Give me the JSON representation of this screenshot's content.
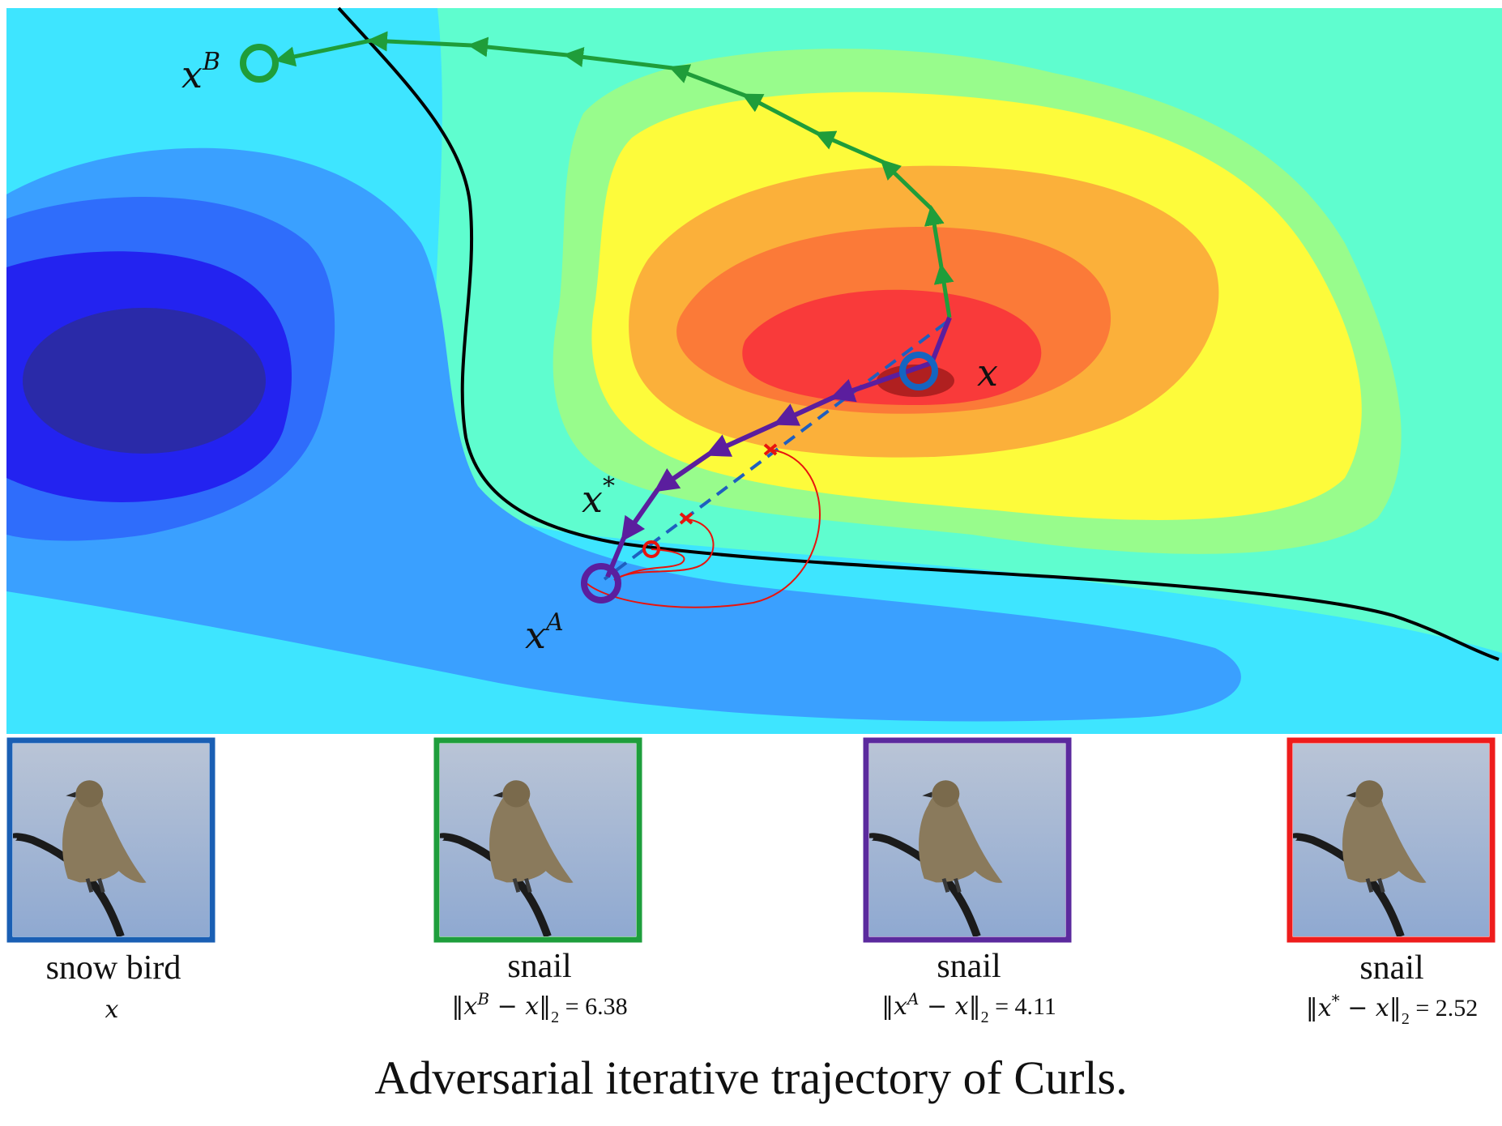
{
  "caption": "Adversarial iterative trajectory of Curls.",
  "plot": {
    "point_labels": {
      "x": "x",
      "xB_base": "x",
      "xB_sup": "B",
      "xA_base": "x",
      "xA_sup": "A",
      "xstar_base": "x",
      "xstar_sup": "*"
    },
    "colors": {
      "boundary": "#000000",
      "path_B": "#1f9d3a",
      "path_A": "#5b1e9e",
      "dashed_line": "#1f5fbf",
      "original_point": "#1565c0",
      "xstar_marker": "#e8140e"
    },
    "contour_palette": [
      "#2a2aa8",
      "#2323f0",
      "#2f6dfb",
      "#3aa0ff",
      "#3ee5ff",
      "#5ffdcf",
      "#98fc8c",
      "#d9fb5a",
      "#fdfb3b",
      "#fbb03a",
      "#fb7a38",
      "#f93a3a",
      "#b02020"
    ]
  },
  "panels": [
    {
      "class_label": "snow bird",
      "metric": "x",
      "border_color": "#1a5fb4"
    },
    {
      "class_label": "snail",
      "metric_prefix": "‖x",
      "metric_sup": "B",
      "metric_mid": " − x‖",
      "metric_sub": "2",
      "metric_value": " = 6.38",
      "border_color": "#1e9e3c"
    },
    {
      "class_label": "snail",
      "metric_prefix": "‖x",
      "metric_sup": "A",
      "metric_mid": " − x‖",
      "metric_sub": "2",
      "metric_value": " = 4.11",
      "border_color": "#5b2a9e"
    },
    {
      "class_label": "snail",
      "metric_prefix": "‖x",
      "metric_sup": "*",
      "metric_mid": " − x‖",
      "metric_sub": "2",
      "metric_value": " = 2.52",
      "border_color": "#ee1c1c"
    }
  ]
}
